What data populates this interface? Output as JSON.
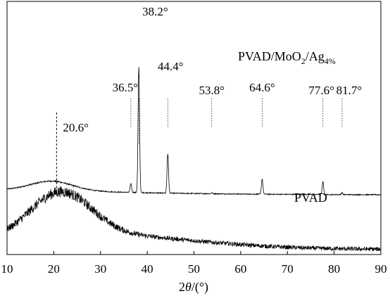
{
  "chart_data": {
    "type": "line",
    "title": "",
    "xlabel_parts": {
      "pre": "2",
      "var": "θ",
      "post": "/(°)"
    },
    "ylabel": "",
    "xlim": [
      10,
      90
    ],
    "x_ticks": [
      "10",
      "20",
      "30",
      "40",
      "50",
      "60",
      "70",
      "80",
      "90"
    ],
    "y_ticks": [],
    "grid": false,
    "legend": "none",
    "series": [
      {
        "label_main": "PVAD/MoO",
        "label_sub1": "2",
        "label_mid": "/Ag",
        "label_sub2": "4%",
        "color": "#000000",
        "baseline": 0.255,
        "hump": {
          "center": 19.5,
          "height": 0.035,
          "width": 4.5
        },
        "decay": {
          "start": 20,
          "amount": 0.02,
          "rate": 25
        },
        "noise": 0.004,
        "peaks": [
          {
            "pos": 36.5,
            "height": 0.035,
            "label": "36.5°"
          },
          {
            "pos": 38.2,
            "height": 0.495,
            "label": "38.2°"
          },
          {
            "pos": 44.4,
            "height": 0.155,
            "label": "44.4°"
          },
          {
            "pos": 53.8,
            "height": 0.004,
            "label": "53.8°"
          },
          {
            "pos": 64.6,
            "height": 0.06,
            "label": "64.6°"
          },
          {
            "pos": 77.6,
            "height": 0.05,
            "label": "77.6°"
          },
          {
            "pos": 81.7,
            "height": 0.007,
            "label": "81.7°"
          }
        ]
      },
      {
        "label": "PVAD",
        "color": "#000000",
        "baseline": 0.02,
        "hump": {
          "center": 21.5,
          "height": 0.17,
          "width": 6.5
        },
        "tail": {
          "center": 27,
          "height": 0.06,
          "width": 22
        },
        "noise": 0.017,
        "peaks": [
          {
            "pos": 20.6,
            "height": 0,
            "label": "20.6°"
          }
        ]
      }
    ]
  }
}
